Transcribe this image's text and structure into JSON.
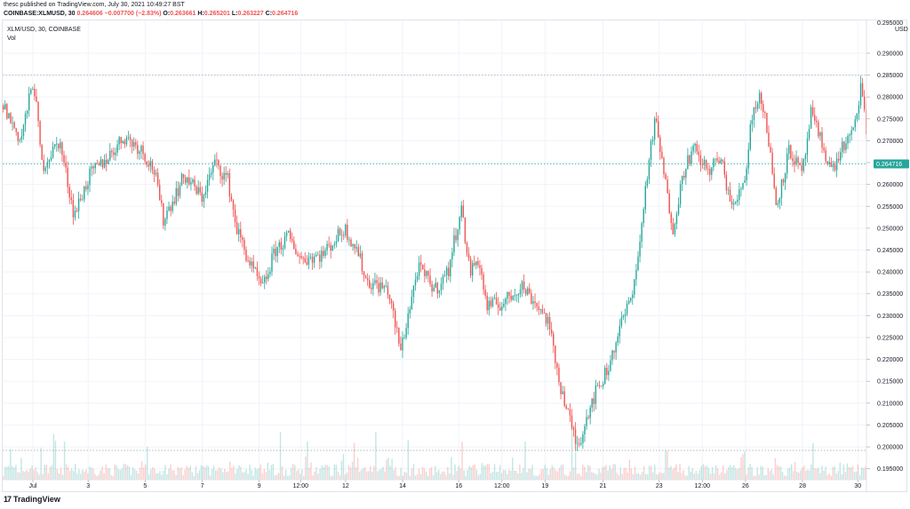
{
  "header": {
    "published": "thesc published on TradingView.com, July 30, 2021 10:49:27 BST",
    "symbol_line": "COINBASE:XLMUSD, 30",
    "price": "0.264606",
    "change": "−0.007700 (−2.83%)",
    "o_label": "O:",
    "o_value": "0.263661",
    "h_label": "H:",
    "h_value": "0.265201",
    "l_label": "L:",
    "l_value": "0.263227",
    "c_label": "C:",
    "c_value": "0.264716"
  },
  "legend": {
    "series_title": "XLM/USD, 30, COINBASE",
    "volume_title": "Vol"
  },
  "footer": {
    "brand": "TradingView",
    "logo_glyph": "17"
  },
  "colors": {
    "up": "#26a69a",
    "down": "#ef5350",
    "grid": "#f0f3fa",
    "last_price_bg": "#26a69a",
    "dotted": "#9aa0a6"
  },
  "chart_data": {
    "type": "candlestick",
    "title": "XLM/USD, 30, COINBASE",
    "currency": "USD",
    "y_axis_label": "USD",
    "ylim": [
      0.1925,
      0.2975
    ],
    "y_ticks": [
      "0.290000",
      "0.285000",
      "0.280000",
      "0.275000",
      "0.270000",
      "0.265000",
      "0.260000",
      "0.255000",
      "0.250000",
      "0.245000",
      "0.240000",
      "0.235000",
      "0.230000",
      "0.225000",
      "0.220000",
      "0.215000",
      "0.210000",
      "0.205000",
      "0.200000",
      "0.195000"
    ],
    "top_cut_tick": "0.295000",
    "x_ticks": [
      {
        "label": "Jul",
        "pos": 0.035
      },
      {
        "label": "3",
        "pos": 0.099
      },
      {
        "label": "5",
        "pos": 0.165
      },
      {
        "label": "7",
        "pos": 0.231
      },
      {
        "label": "9",
        "pos": 0.297
      },
      {
        "label": "12:00",
        "pos": 0.345
      },
      {
        "label": "12",
        "pos": 0.397
      },
      {
        "label": "14",
        "pos": 0.463
      },
      {
        "label": "16",
        "pos": 0.528
      },
      {
        "label": "12:00",
        "pos": 0.578
      },
      {
        "label": "19",
        "pos": 0.628
      },
      {
        "label": "21",
        "pos": 0.695
      },
      {
        "label": "23",
        "pos": 0.76
      },
      {
        "label": "12:00",
        "pos": 0.81
      },
      {
        "label": "26",
        "pos": 0.86
      },
      {
        "label": "28",
        "pos": 0.926
      },
      {
        "label": "30",
        "pos": 0.99
      }
    ],
    "last_price": "0.264716",
    "horizontal_levels": [
      0.285,
      0.2647,
      0.1992
    ],
    "key_points": [
      [
        0.0,
        0.278
      ],
      [
        0.02,
        0.27
      ],
      [
        0.035,
        0.284
      ],
      [
        0.045,
        0.264
      ],
      [
        0.065,
        0.27
      ],
      [
        0.082,
        0.253
      ],
      [
        0.1,
        0.262
      ],
      [
        0.12,
        0.266
      ],
      [
        0.14,
        0.271
      ],
      [
        0.16,
        0.268
      ],
      [
        0.175,
        0.263
      ],
      [
        0.185,
        0.252
      ],
      [
        0.21,
        0.262
      ],
      [
        0.23,
        0.257
      ],
      [
        0.245,
        0.265
      ],
      [
        0.26,
        0.261
      ],
      [
        0.27,
        0.25
      ],
      [
        0.285,
        0.242
      ],
      [
        0.3,
        0.236
      ],
      [
        0.315,
        0.245
      ],
      [
        0.33,
        0.248
      ],
      [
        0.345,
        0.243
      ],
      [
        0.37,
        0.244
      ],
      [
        0.395,
        0.25
      ],
      [
        0.41,
        0.245
      ],
      [
        0.42,
        0.238
      ],
      [
        0.445,
        0.236
      ],
      [
        0.46,
        0.222
      ],
      [
        0.48,
        0.241
      ],
      [
        0.5,
        0.236
      ],
      [
        0.515,
        0.24
      ],
      [
        0.53,
        0.255
      ],
      [
        0.54,
        0.24
      ],
      [
        0.55,
        0.243
      ],
      [
        0.56,
        0.232
      ],
      [
        0.58,
        0.233
      ],
      [
        0.6,
        0.237
      ],
      [
        0.62,
        0.232
      ],
      [
        0.63,
        0.229
      ],
      [
        0.645,
        0.214
      ],
      [
        0.66,
        0.203
      ],
      [
        0.665,
        0.2
      ],
      [
        0.68,
        0.21
      ],
      [
        0.7,
        0.218
      ],
      [
        0.715,
        0.228
      ],
      [
        0.725,
        0.233
      ],
      [
        0.735,
        0.243
      ],
      [
        0.745,
        0.262
      ],
      [
        0.755,
        0.275
      ],
      [
        0.765,
        0.262
      ],
      [
        0.775,
        0.25
      ],
      [
        0.79,
        0.265
      ],
      [
        0.8,
        0.268
      ],
      [
        0.815,
        0.263
      ],
      [
        0.83,
        0.266
      ],
      [
        0.845,
        0.254
      ],
      [
        0.86,
        0.263
      ],
      [
        0.865,
        0.274
      ],
      [
        0.875,
        0.281
      ],
      [
        0.885,
        0.272
      ],
      [
        0.895,
        0.255
      ],
      [
        0.91,
        0.268
      ],
      [
        0.925,
        0.262
      ],
      [
        0.935,
        0.276
      ],
      [
        0.95,
        0.268
      ],
      [
        0.96,
        0.263
      ],
      [
        0.97,
        0.268
      ],
      [
        0.985,
        0.272
      ],
      [
        0.993,
        0.283
      ],
      [
        1.0,
        0.27
      ],
      [
        1.005,
        0.2647
      ]
    ],
    "volume": {
      "title": "Vol",
      "max_relative": 1.0,
      "baseline_level": 0.199
    }
  }
}
